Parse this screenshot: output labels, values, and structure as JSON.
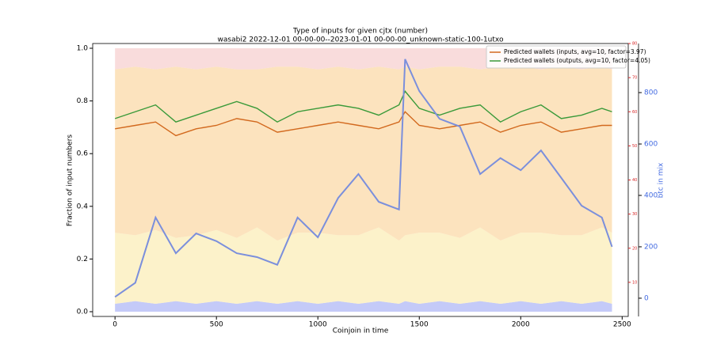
{
  "chart_data": {
    "type": "line",
    "title": "Type of inputs for given cjtx (number)",
    "subtitle": "wasabi2 2022-12-01 00-00-00--2023-01-01 00-00-00_unknown-static-100-1utxo",
    "x_label": "Coinjoin in time",
    "y_label": "Fraction of input numbers",
    "y3_label": "btc in mix",
    "x": [
      0,
      100,
      200,
      300,
      400,
      500,
      600,
      700,
      800,
      900,
      1000,
      1100,
      1200,
      1300,
      1400,
      1430,
      1500,
      1600,
      1700,
      1800,
      1900,
      2000,
      2100,
      2200,
      2300,
      2400,
      2450
    ],
    "xlim": [
      -110,
      2530
    ],
    "xticks": [
      0,
      500,
      1000,
      1500,
      2000,
      2500
    ],
    "ylim": [
      -0.018,
      1.018
    ],
    "yticks": [
      {
        "value": 0,
        "label": "0.0"
      },
      {
        "value": 0.2,
        "label": "0.2"
      },
      {
        "value": 0.4,
        "label": "0.4"
      },
      {
        "value": 0.6,
        "label": "0.6"
      },
      {
        "value": 0.8,
        "label": "0.8"
      },
      {
        "value": 1,
        "label": "1.0"
      }
    ],
    "y2lim": [
      0,
      80
    ],
    "y2ticks": [
      10,
      20,
      30,
      40,
      50,
      60,
      70,
      80
    ],
    "y2color": "#d62728",
    "y3lim": [
      -71,
      991
    ],
    "y3ticks": [
      0,
      200,
      400,
      600,
      800
    ],
    "y3color": "#4169e1",
    "legend": "upper right",
    "areas": [
      {
        "color": "#b0b8f5",
        "values": [
          0.03,
          0.04,
          0.03,
          0.04,
          0.03,
          0.04,
          0.03,
          0.04,
          0.03,
          0.04,
          0.03,
          0.04,
          0.03,
          0.04,
          0.03,
          0.04,
          0.03,
          0.04,
          0.03,
          0.04,
          0.03,
          0.04,
          0.03,
          0.04,
          0.03,
          0.04,
          0.03
        ]
      },
      {
        "color": "#fbeeb8",
        "values": [
          0.27,
          0.25,
          0.28,
          0.24,
          0.26,
          0.27,
          0.25,
          0.28,
          0.24,
          0.26,
          0.27,
          0.25,
          0.26,
          0.28,
          0.24,
          0.25,
          0.27,
          0.26,
          0.25,
          0.28,
          0.24,
          0.26,
          0.27,
          0.25,
          0.26,
          0.28,
          0.27
        ]
      },
      {
        "color": "#fbd9a8",
        "values": [
          0.62,
          0.64,
          0.61,
          0.65,
          0.63,
          0.62,
          0.64,
          0.6,
          0.66,
          0.63,
          0.62,
          0.64,
          0.63,
          0.61,
          0.65,
          0.64,
          0.62,
          0.63,
          0.65,
          0.6,
          0.66,
          0.63,
          0.62,
          0.64,
          0.63,
          0.61,
          0.62
        ]
      },
      {
        "color": "#f7d0d0",
        "values": [
          0.08,
          0.07,
          0.08,
          0.07,
          0.08,
          0.07,
          0.08,
          0.08,
          0.07,
          0.07,
          0.08,
          0.07,
          0.08,
          0.07,
          0.08,
          0.07,
          0.08,
          0.07,
          0.07,
          0.08,
          0.07,
          0.07,
          0.08,
          0.07,
          0.08,
          0.07,
          0.08
        ]
      }
    ],
    "series": [
      {
        "name": "Predicted wallets (inputs, avg=10, factor=3.97)",
        "color": "#d2691e",
        "axis": "y2",
        "values": [
          55,
          56,
          57,
          53,
          55,
          56,
          58,
          57,
          54,
          55,
          56,
          57,
          56,
          55,
          57,
          60,
          56,
          55,
          56,
          57,
          54,
          56,
          57,
          54,
          55,
          56,
          56
        ]
      },
      {
        "name": "Predicted wallets (outputs, avg=10, factor=4.05)",
        "color": "#3a9a3a",
        "axis": "y2",
        "values": [
          58,
          60,
          62,
          57,
          59,
          61,
          63,
          61,
          57,
          60,
          61,
          62,
          61,
          59,
          62,
          66,
          61,
          59,
          61,
          62,
          57,
          60,
          62,
          58,
          59,
          61,
          60
        ]
      },
      {
        "color": "#7b8fdc",
        "axis": "y3",
        "values": [
          5,
          60,
          314,
          175,
          252,
          222,
          175,
          160,
          130,
          314,
          237,
          390,
          483,
          375,
          345,
          930,
          806,
          698,
          668,
          483,
          545,
          498,
          575,
          468,
          360,
          314,
          200
        ]
      }
    ]
  }
}
